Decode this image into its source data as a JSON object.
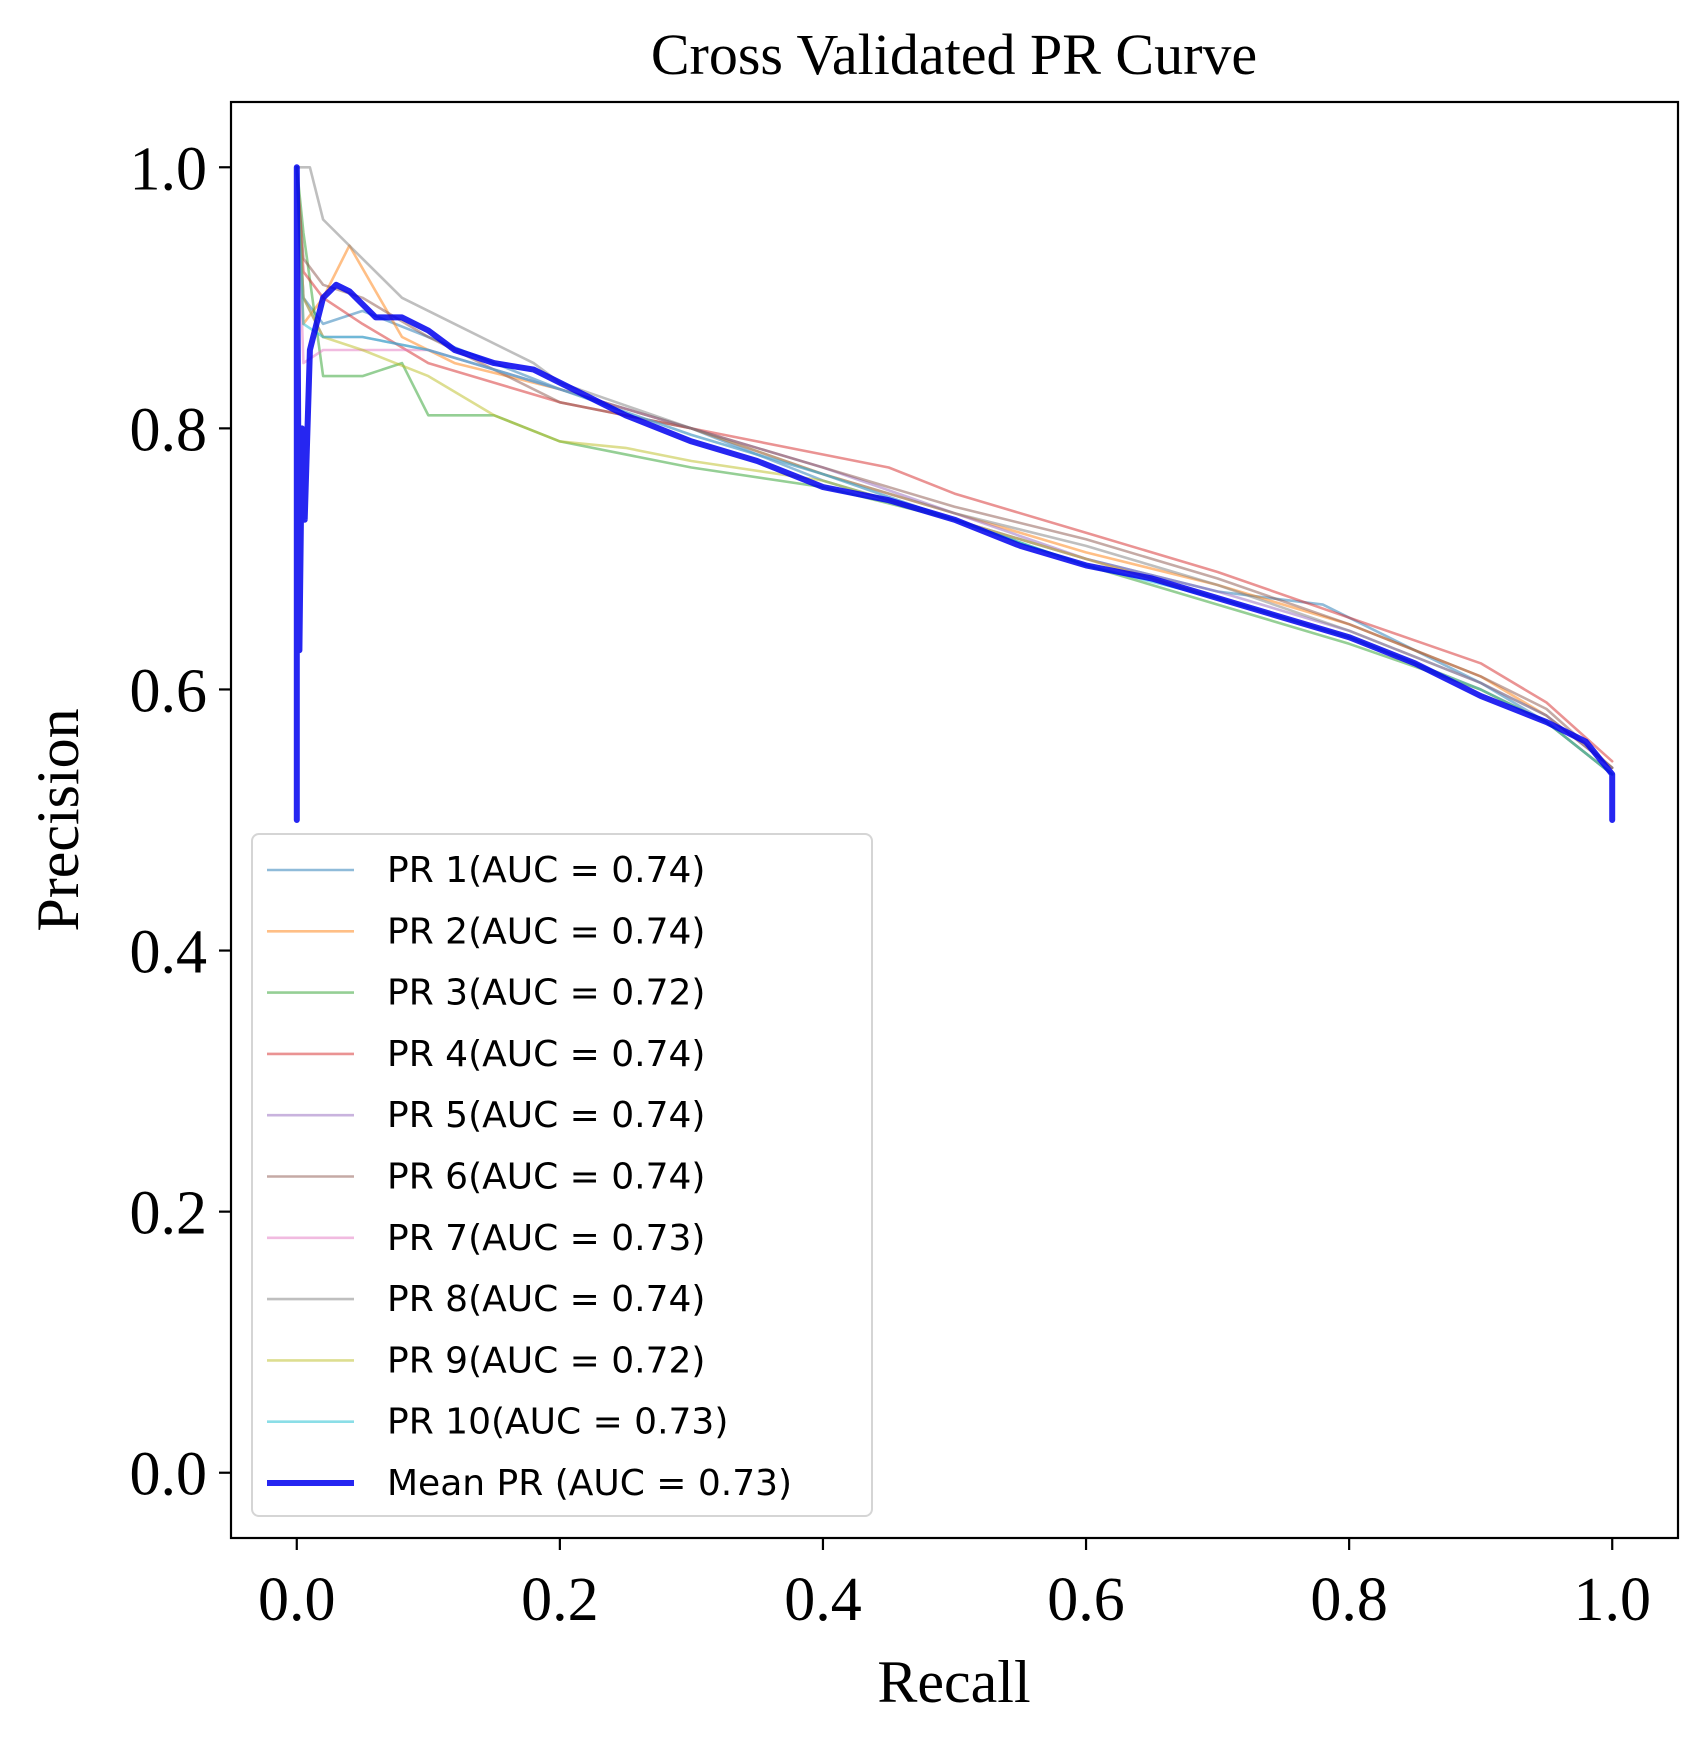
{
  "chart_data": {
    "type": "line",
    "title": "Cross Validated PR Curve",
    "xlabel": "Recall",
    "ylabel": "Precision",
    "xlim": [
      -0.05,
      1.05
    ],
    "ylim": [
      -0.05,
      1.05
    ],
    "xticks": [
      0.0,
      0.2,
      0.4,
      0.6,
      0.8,
      1.0
    ],
    "yticks": [
      0.0,
      0.2,
      0.4,
      0.6,
      0.8,
      1.0
    ],
    "xtick_labels": [
      "0.0",
      "0.2",
      "0.4",
      "0.6",
      "0.8",
      "1.0"
    ],
    "ytick_labels": [
      "0.0",
      "0.2",
      "0.4",
      "0.6",
      "0.8",
      "1.0"
    ],
    "grid": false,
    "legend_position": "lower-left",
    "series": [
      {
        "name": "PR 1(AUC = 0.74)",
        "color": "#1f77b4",
        "x": [
          0.0,
          0.005,
          0.02,
          0.05,
          0.1,
          0.15,
          0.2,
          0.3,
          0.4,
          0.5,
          0.6,
          0.7,
          0.78,
          0.85,
          0.9,
          0.95,
          1.0
        ],
        "y": [
          1.0,
          0.9,
          0.88,
          0.89,
          0.87,
          0.85,
          0.83,
          0.8,
          0.76,
          0.73,
          0.7,
          0.675,
          0.665,
          0.63,
          0.605,
          0.575,
          0.535
        ]
      },
      {
        "name": "PR 2(AUC = 0.74)",
        "color": "#ff7f0e",
        "x": [
          0.0,
          0.005,
          0.02,
          0.04,
          0.08,
          0.12,
          0.2,
          0.3,
          0.4,
          0.5,
          0.6,
          0.7,
          0.8,
          0.9,
          0.95,
          1.0
        ],
        "y": [
          1.0,
          0.88,
          0.9,
          0.94,
          0.87,
          0.85,
          0.83,
          0.8,
          0.765,
          0.735,
          0.705,
          0.68,
          0.65,
          0.61,
          0.58,
          0.54
        ]
      },
      {
        "name": "PR 3(AUC = 0.72)",
        "color": "#2ca02c",
        "x": [
          0.0,
          0.005,
          0.02,
          0.05,
          0.08,
          0.1,
          0.15,
          0.2,
          0.3,
          0.4,
          0.5,
          0.6,
          0.7,
          0.8,
          0.9,
          0.95,
          1.0
        ],
        "y": [
          1.0,
          0.95,
          0.84,
          0.84,
          0.85,
          0.81,
          0.81,
          0.79,
          0.77,
          0.755,
          0.73,
          0.695,
          0.665,
          0.635,
          0.6,
          0.575,
          0.535
        ]
      },
      {
        "name": "PR 4(AUC = 0.74)",
        "color": "#d62728",
        "x": [
          0.0,
          0.005,
          0.02,
          0.05,
          0.1,
          0.2,
          0.3,
          0.4,
          0.45,
          0.5,
          0.6,
          0.7,
          0.8,
          0.9,
          0.95,
          1.0
        ],
        "y": [
          1.0,
          0.92,
          0.9,
          0.88,
          0.85,
          0.82,
          0.8,
          0.78,
          0.77,
          0.75,
          0.72,
          0.69,
          0.655,
          0.62,
          0.59,
          0.545
        ]
      },
      {
        "name": "PR 5(AUC = 0.74)",
        "color": "#9467bd",
        "x": [
          0.0,
          0.005,
          0.02,
          0.05,
          0.1,
          0.2,
          0.3,
          0.4,
          0.5,
          0.6,
          0.7,
          0.8,
          0.9,
          0.95,
          1.0
        ],
        "y": [
          1.0,
          0.9,
          0.87,
          0.87,
          0.86,
          0.83,
          0.8,
          0.77,
          0.735,
          0.7,
          0.675,
          0.645,
          0.605,
          0.58,
          0.54
        ]
      },
      {
        "name": "PR 6(AUC = 0.74)",
        "color": "#8c564b",
        "x": [
          0.0,
          0.005,
          0.02,
          0.05,
          0.1,
          0.2,
          0.3,
          0.4,
          0.5,
          0.6,
          0.7,
          0.8,
          0.9,
          0.95,
          1.0
        ],
        "y": [
          1.0,
          0.93,
          0.91,
          0.9,
          0.87,
          0.82,
          0.8,
          0.77,
          0.74,
          0.715,
          0.685,
          0.65,
          0.61,
          0.585,
          0.54
        ]
      },
      {
        "name": "PR 7(AUC = 0.73)",
        "color": "#e377c2",
        "x": [
          0.0,
          0.005,
          0.02,
          0.05,
          0.1,
          0.2,
          0.3,
          0.4,
          0.5,
          0.6,
          0.7,
          0.8,
          0.9,
          0.95,
          1.0
        ],
        "y": [
          1.0,
          0.85,
          0.86,
          0.86,
          0.86,
          0.83,
          0.795,
          0.765,
          0.73,
          0.7,
          0.67,
          0.64,
          0.6,
          0.575,
          0.535
        ]
      },
      {
        "name": "PR 8(AUC = 0.74)",
        "color": "#7f7f7f",
        "x": [
          0.0,
          0.005,
          0.01,
          0.02,
          0.05,
          0.08,
          0.12,
          0.18,
          0.2,
          0.3,
          0.4,
          0.5,
          0.6,
          0.7,
          0.8,
          0.9,
          0.95,
          1.0
        ],
        "y": [
          1.0,
          1.0,
          1.0,
          0.96,
          0.93,
          0.9,
          0.88,
          0.85,
          0.835,
          0.8,
          0.765,
          0.735,
          0.71,
          0.68,
          0.645,
          0.605,
          0.58,
          0.54
        ]
      },
      {
        "name": "PR 9(AUC = 0.72)",
        "color": "#bcbd22",
        "x": [
          0.0,
          0.005,
          0.02,
          0.05,
          0.1,
          0.15,
          0.2,
          0.25,
          0.3,
          0.4,
          0.5,
          0.6,
          0.7,
          0.8,
          0.9,
          0.95,
          1.0
        ],
        "y": [
          1.0,
          0.9,
          0.87,
          0.86,
          0.84,
          0.81,
          0.79,
          0.785,
          0.775,
          0.76,
          0.73,
          0.7,
          0.67,
          0.64,
          0.6,
          0.575,
          0.535
        ]
      },
      {
        "name": "PR 10(AUC = 0.73)",
        "color": "#17becf",
        "x": [
          0.0,
          0.005,
          0.02,
          0.05,
          0.1,
          0.2,
          0.3,
          0.4,
          0.5,
          0.6,
          0.7,
          0.8,
          0.9,
          0.95,
          1.0
        ],
        "y": [
          1.0,
          0.88,
          0.87,
          0.87,
          0.86,
          0.83,
          0.795,
          0.765,
          0.73,
          0.695,
          0.67,
          0.64,
          0.6,
          0.575,
          0.535
        ]
      },
      {
        "name": "Mean PR (AUC = 0.73)",
        "color": "#0000ee",
        "bold": true,
        "x": [
          0.0,
          0.0,
          0.002,
          0.004,
          0.006,
          0.01,
          0.015,
          0.02,
          0.025,
          0.03,
          0.04,
          0.05,
          0.06,
          0.08,
          0.1,
          0.12,
          0.15,
          0.18,
          0.2,
          0.25,
          0.3,
          0.35,
          0.4,
          0.45,
          0.5,
          0.55,
          0.6,
          0.65,
          0.7,
          0.75,
          0.8,
          0.85,
          0.9,
          0.95,
          0.98,
          1.0,
          1.0
        ],
        "y": [
          0.5,
          1.0,
          0.63,
          0.8,
          0.73,
          0.86,
          0.88,
          0.9,
          0.905,
          0.91,
          0.905,
          0.895,
          0.885,
          0.885,
          0.875,
          0.86,
          0.85,
          0.845,
          0.835,
          0.81,
          0.79,
          0.775,
          0.755,
          0.745,
          0.73,
          0.71,
          0.695,
          0.685,
          0.67,
          0.655,
          0.64,
          0.62,
          0.595,
          0.575,
          0.56,
          0.535,
          0.5
        ]
      }
    ]
  }
}
